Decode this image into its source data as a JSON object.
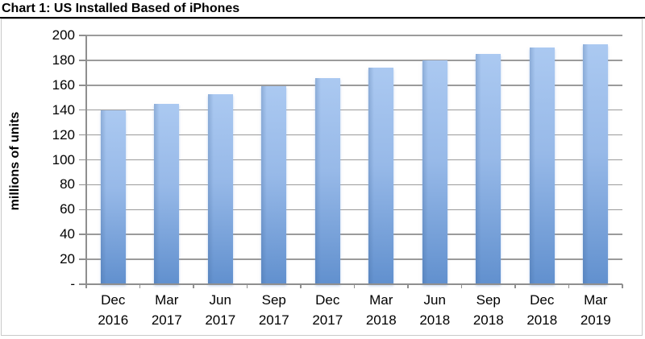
{
  "title": "Chart 1: US Installed Based of iPhones",
  "chart_data": {
    "type": "bar",
    "title": "Chart 1: US Installed Based of iPhones",
    "categories": [
      "Dec 2016",
      "Mar 2017",
      "Jun 2017",
      "Sep 2017",
      "Dec 2017",
      "Mar 2018",
      "Jun 2018",
      "Sep 2018",
      "Dec 2018",
      "Mar 2019"
    ],
    "values": [
      140,
      145,
      153,
      159,
      166,
      174,
      180,
      185,
      190,
      193
    ],
    "xlabel": "",
    "ylabel": "millions of units",
    "ylim": [
      0,
      200
    ],
    "ytick_step": 20,
    "ytick_labels": [
      "-",
      "20",
      "40",
      "60",
      "80",
      "100",
      "120",
      "140",
      "160",
      "180",
      "200"
    ],
    "grid": true,
    "legend_position": "none"
  },
  "colors": {
    "bar_gradient_top": "#abc9f1",
    "bar_gradient_mid": "#97b9e8",
    "bar_gradient_bottom": "#6190ce",
    "bar_left_shade": "rgba(62,100,150,0.28)",
    "gridline": "#9b9b9b",
    "axis_line": "#8f8f8f",
    "frame_border": "#c9c9c9",
    "title_rule": "#000000",
    "text": "#000000"
  }
}
